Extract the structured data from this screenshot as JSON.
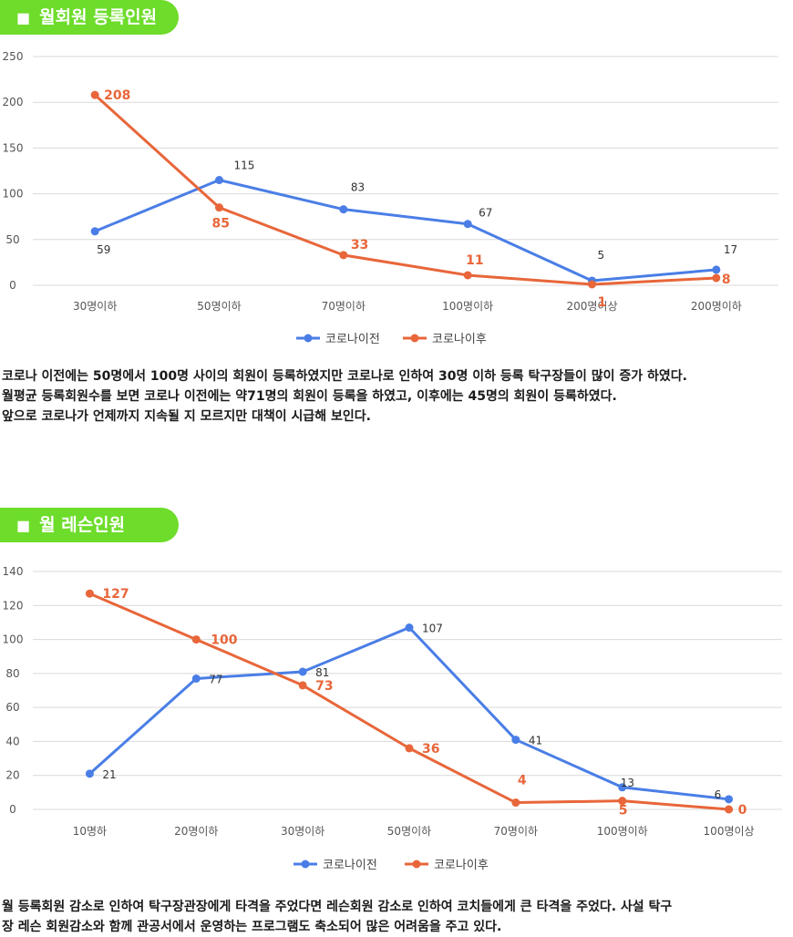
{
  "section1": {
    "title": "월회원 등록인원"
  },
  "section2": {
    "title": "월 레슨인원"
  },
  "paragraph1": [
    "코로나 이전에는 50명에서 100명 사이의 회원이 등록하였지만 코로나로 인하여 30명 이하 등록 탁구장들이 많이 증가 하였다.",
    "월평균 등록회원수를  보면 코로나 이전에는 약71명의 회원이 등록을 하였고, 이후에는 45명의 회원이 등록하였다.",
    "앞으로 코로나가 언제까지 지속될 지 모르지만 대책이 시급해 보인다."
  ],
  "paragraph2": [
    "월 등록회원 감소로 인하여 탁구장관장에게 타격을 주었다면 레슨회원 감소로 인하여 코치들에게 큰 타격을 주었다.  사설 탁구",
    "장 레슨 회원감소와 함께 관공서에서 운영하는 프로그램도 축소되어 많은 어려움을 주고 있다."
  ],
  "colors": {
    "before": "#4a7ee6",
    "after": "#e8663a",
    "pill": "#6ddc2a",
    "grid": "#d9d9d9"
  },
  "chart_data": [
    {
      "type": "line",
      "title": "월회원 등록인원",
      "categories": [
        "30명이하",
        "50명이하",
        "70명이하",
        "100명이하",
        "200명이상",
        "200명이하"
      ],
      "ylim": [
        0,
        250
      ],
      "yticks": [
        0,
        50,
        100,
        150,
        200,
        250
      ],
      "series": [
        {
          "name": "코로나이전",
          "values": [
            59,
            115,
            83,
            67,
            5,
            17
          ]
        },
        {
          "name": "코로나이후",
          "values": [
            208,
            85,
            33,
            11,
            1,
            8
          ]
        }
      ]
    },
    {
      "type": "line",
      "title": "월 레슨인원",
      "categories": [
        "10명하",
        "20명이하",
        "30명이하",
        "50명이하",
        "70명이하",
        "100명이하",
        "100명이상"
      ],
      "ylim": [
        0,
        140
      ],
      "yticks": [
        0,
        20,
        40,
        60,
        80,
        100,
        120,
        140
      ],
      "series": [
        {
          "name": "코로나이전",
          "values": [
            21,
            77,
            81,
            107,
            41,
            13,
            6
          ]
        },
        {
          "name": "코로나이후",
          "values": [
            127,
            100,
            73,
            36,
            4,
            5,
            0
          ]
        }
      ]
    }
  ]
}
